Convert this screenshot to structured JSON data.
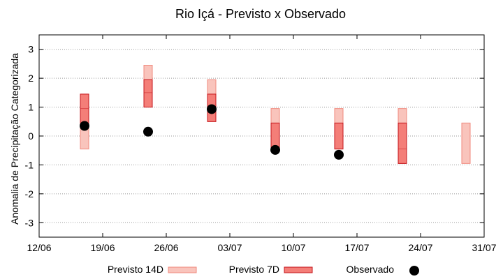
{
  "chart_data": {
    "type": "box",
    "title": "Rio Içá - Previsto x Observado",
    "xlabel": "",
    "ylabel": "Anomalia de Precipitação Categorizada",
    "ylim": [
      -3.5,
      3.5
    ],
    "yticks": [
      -3,
      -2,
      -1,
      0,
      1,
      2,
      3
    ],
    "x_dates": [
      "2024-06-12",
      "2024-06-19",
      "2024-06-26",
      "2024-07-03",
      "2024-07-10",
      "2024-07-17",
      "2024-07-24",
      "2024-07-31"
    ],
    "xtick_labels": [
      "12/06",
      "19/06",
      "26/06",
      "03/07",
      "10/07",
      "17/07",
      "24/07",
      "31/07"
    ],
    "grid": "horizontal",
    "legend_position": "bottom",
    "colors": {
      "previsto_14d_fill": "#f9c4bc",
      "previsto_14d_edge": "#f08a7e",
      "previsto_7d_fill": "#f47e78",
      "previsto_7d_edge": "#c4161c",
      "observado": "#000000"
    },
    "series": [
      {
        "name": "Previsto 14D",
        "type": "range",
        "points": [
          {
            "x": "2024-06-17",
            "low": -0.45,
            "high": 1.45
          },
          {
            "x": "2024-06-24",
            "low": 1.0,
            "high": 2.45
          },
          {
            "x": "2024-07-01",
            "low": 0.5,
            "high": 1.95
          },
          {
            "x": "2024-07-08",
            "low": -0.45,
            "high": 0.95
          },
          {
            "x": "2024-07-15",
            "low": -0.45,
            "high": 0.95
          },
          {
            "x": "2024-07-22",
            "low": -0.95,
            "high": 0.95
          },
          {
            "x": "2024-07-29",
            "low": -0.95,
            "high": 0.45
          }
        ]
      },
      {
        "name": "Previsto 7D",
        "type": "range",
        "points": [
          {
            "x": "2024-06-17",
            "low": 0.45,
            "high": 1.45,
            "mid": 0.95
          },
          {
            "x": "2024-06-24",
            "low": 1.0,
            "high": 1.95,
            "mid": 1.5
          },
          {
            "x": "2024-07-01",
            "low": 0.5,
            "high": 1.45,
            "mid": 0.95
          },
          {
            "x": "2024-07-08",
            "low": -0.45,
            "high": 0.45
          },
          {
            "x": "2024-07-15",
            "low": -0.45,
            "high": 0.45
          },
          {
            "x": "2024-07-22",
            "low": -0.95,
            "high": 0.45,
            "mid": -0.45
          }
        ]
      },
      {
        "name": "Observado",
        "type": "scatter",
        "points": [
          {
            "x": "2024-06-17",
            "y": 0.35
          },
          {
            "x": "2024-06-24",
            "y": 0.15
          },
          {
            "x": "2024-07-01",
            "y": 0.93
          },
          {
            "x": "2024-07-08",
            "y": -0.48
          },
          {
            "x": "2024-07-15",
            "y": -0.65
          }
        ]
      }
    ]
  }
}
